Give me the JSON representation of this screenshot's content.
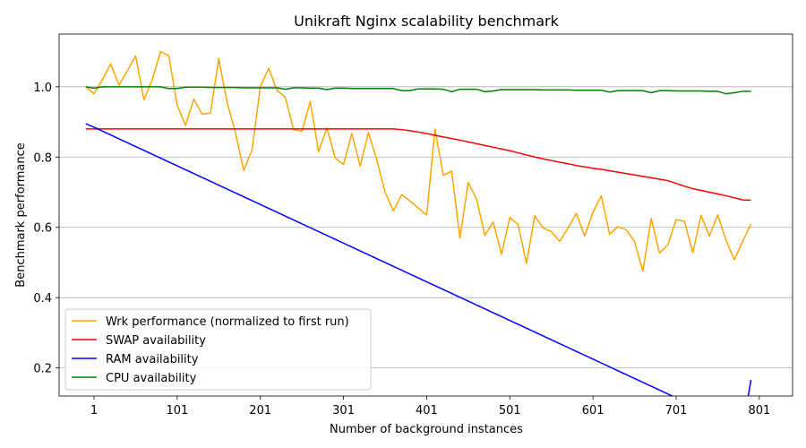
{
  "chart_data": {
    "type": "line",
    "title": "Unikraft Nginx scalability benchmark",
    "xlabel": "Number of background instances",
    "ylabel": "Benchmark performance",
    "xlim": [
      -41,
      841
    ],
    "ylim": [
      0.12,
      1.15
    ],
    "xticks": [
      1,
      101,
      201,
      301,
      401,
      501,
      601,
      701,
      801
    ],
    "yticks": [
      0.2,
      0.4,
      0.6,
      0.8,
      1.0
    ],
    "ytick_labels": [
      "0.2",
      "0.4",
      "0.6",
      "0.8",
      "1.0"
    ],
    "grid": "y",
    "legend_position": "lower-left",
    "x": [
      -9,
      1,
      11,
      21,
      31,
      41,
      51,
      61,
      71,
      81,
      91,
      101,
      111,
      121,
      131,
      141,
      151,
      161,
      171,
      181,
      191,
      201,
      211,
      221,
      231,
      241,
      251,
      261,
      271,
      281,
      291,
      301,
      311,
      321,
      331,
      341,
      351,
      361,
      371,
      381,
      391,
      401,
      411,
      421,
      431,
      441,
      451,
      461,
      471,
      481,
      491,
      501,
      511,
      521,
      531,
      541,
      551,
      561,
      571,
      581,
      591,
      601,
      611,
      621,
      631,
      641,
      651,
      661,
      671,
      681,
      691,
      701,
      711,
      721,
      731,
      741,
      751,
      761,
      771,
      781,
      791
    ],
    "series": [
      {
        "name": "Wrk performance (normalized to first run)",
        "color": "#ffa500",
        "values": [
          1.0,
          0.98,
          1.02,
          1.065,
          1.005,
          1.045,
          1.088,
          0.963,
          1.02,
          1.1,
          1.088,
          0.947,
          0.89,
          0.965,
          0.922,
          0.925,
          1.08,
          0.956,
          0.87,
          0.762,
          0.82,
          1.0,
          1.053,
          0.99,
          0.97,
          0.878,
          0.873,
          0.958,
          0.815,
          0.883,
          0.797,
          0.779,
          0.867,
          0.774,
          0.87,
          0.792,
          0.7,
          0.647,
          0.693,
          0.675,
          0.655,
          0.635,
          0.88,
          0.748,
          0.76,
          0.57,
          0.728,
          0.68,
          0.577,
          0.615,
          0.523,
          0.628,
          0.608,
          0.497,
          0.633,
          0.598,
          0.588,
          0.56,
          0.598,
          0.64,
          0.575,
          0.643,
          0.69,
          0.58,
          0.602,
          0.593,
          0.56,
          0.475,
          0.625,
          0.527,
          0.55,
          0.622,
          0.617,
          0.528,
          0.634,
          0.575,
          0.636,
          0.563,
          0.508,
          0.56,
          0.61
        ]
      },
      {
        "name": "SWAP availability",
        "color": "#ff0000",
        "values": [
          0.88,
          0.88,
          0.88,
          0.88,
          0.88,
          0.88,
          0.88,
          0.88,
          0.88,
          0.88,
          0.88,
          0.88,
          0.88,
          0.88,
          0.88,
          0.88,
          0.88,
          0.88,
          0.88,
          0.88,
          0.88,
          0.88,
          0.88,
          0.88,
          0.88,
          0.88,
          0.88,
          0.88,
          0.88,
          0.88,
          0.88,
          0.88,
          0.88,
          0.88,
          0.88,
          0.88,
          0.88,
          0.88,
          0.878,
          0.875,
          0.871,
          0.867,
          0.862,
          0.857,
          0.853,
          0.848,
          0.843,
          0.838,
          0.833,
          0.828,
          0.823,
          0.818,
          0.812,
          0.806,
          0.8,
          0.795,
          0.79,
          0.785,
          0.781,
          0.776,
          0.772,
          0.768,
          0.765,
          0.761,
          0.757,
          0.753,
          0.749,
          0.745,
          0.741,
          0.737,
          0.733,
          0.725,
          0.717,
          0.71,
          0.705,
          0.7,
          0.695,
          0.69,
          0.684,
          0.678,
          0.677
        ]
      },
      {
        "name": "RAM availability",
        "color": "#0000ff",
        "values": [
          0.895,
          0.885,
          0.874,
          0.863,
          0.852,
          0.841,
          0.83,
          0.819,
          0.808,
          0.797,
          0.786,
          0.775,
          0.764,
          0.753,
          0.742,
          0.731,
          0.72,
          0.709,
          0.698,
          0.687,
          0.676,
          0.665,
          0.654,
          0.643,
          0.632,
          0.621,
          0.61,
          0.599,
          0.588,
          0.577,
          0.566,
          0.555,
          0.544,
          0.533,
          0.522,
          0.511,
          0.5,
          0.489,
          0.478,
          0.467,
          0.456,
          0.445,
          0.434,
          0.423,
          0.412,
          0.401,
          0.39,
          0.379,
          0.368,
          0.357,
          0.346,
          0.335,
          0.324,
          0.313,
          0.302,
          0.291,
          0.28,
          0.269,
          0.258,
          0.247,
          0.236,
          0.225,
          0.214,
          0.203,
          0.192,
          0.181,
          0.17,
          0.159,
          0.148,
          0.137,
          0.126,
          0.115,
          0.104,
          0.093,
          0.082,
          0.071,
          0.06,
          0.049,
          0.038,
          0.027,
          0.166
        ]
      },
      {
        "name": "CPU availability",
        "color": "#008000",
        "values": [
          1.0,
          0.996,
          1.0,
          1.0,
          1.0,
          1.0,
          1.0,
          1.0,
          1.0,
          1.0,
          0.995,
          0.995,
          0.999,
          0.999,
          0.999,
          0.998,
          0.998,
          0.998,
          0.998,
          0.997,
          0.997,
          0.997,
          0.997,
          0.997,
          0.993,
          0.997,
          0.997,
          0.996,
          0.996,
          0.992,
          0.996,
          0.996,
          0.995,
          0.995,
          0.995,
          0.995,
          0.995,
          0.995,
          0.989,
          0.989,
          0.994,
          0.994,
          0.994,
          0.993,
          0.986,
          0.993,
          0.993,
          0.993,
          0.986,
          0.988,
          0.992,
          0.992,
          0.992,
          0.992,
          0.992,
          0.991,
          0.991,
          0.991,
          0.991,
          0.99,
          0.99,
          0.99,
          0.99,
          0.985,
          0.989,
          0.989,
          0.989,
          0.989,
          0.983,
          0.989,
          0.989,
          0.988,
          0.988,
          0.988,
          0.988,
          0.987,
          0.987,
          0.98,
          0.983,
          0.987,
          0.987
        ]
      }
    ]
  }
}
